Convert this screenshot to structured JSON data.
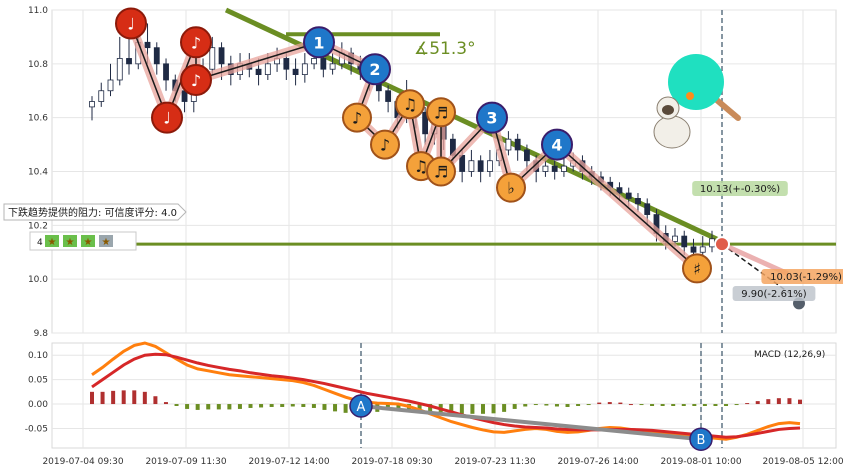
{
  "chart_data": [
    {
      "type": "candlestick",
      "panel": "price",
      "ylim": [
        9.8,
        11.0
      ],
      "y_ticks": [
        "9.8",
        "10.0",
        "10.2",
        "10.4",
        "10.6",
        "10.8",
        "11.0"
      ],
      "colors": {
        "up": "#1f2a44",
        "down": "#1f2a44",
        "trend_line": "#6b8e23",
        "support_line": "#6b8e23",
        "zigzag": "#1a1a1a",
        "zigzag_band": "#e8a39b"
      },
      "candles": [
        {
          "i": 0,
          "o": 10.64,
          "c": 10.66,
          "h": 10.68,
          "l": 10.59
        },
        {
          "i": 1,
          "o": 10.66,
          "c": 10.7,
          "h": 10.73,
          "l": 10.64
        },
        {
          "i": 2,
          "o": 10.7,
          "c": 10.74,
          "h": 10.8,
          "l": 10.68
        },
        {
          "i": 3,
          "o": 10.74,
          "c": 10.82,
          "h": 10.9,
          "l": 10.72
        },
        {
          "i": 4,
          "o": 10.82,
          "c": 10.8,
          "h": 10.95,
          "l": 10.76
        },
        {
          "i": 5,
          "o": 10.8,
          "c": 10.88,
          "h": 10.98,
          "l": 10.78
        },
        {
          "i": 6,
          "o": 10.88,
          "c": 10.86,
          "h": 10.95,
          "l": 10.8
        },
        {
          "i": 7,
          "o": 10.86,
          "c": 10.8,
          "h": 10.88,
          "l": 10.76
        },
        {
          "i": 8,
          "o": 10.8,
          "c": 10.74,
          "h": 10.82,
          "l": 10.7
        },
        {
          "i": 9,
          "o": 10.74,
          "c": 10.7,
          "h": 10.76,
          "l": 10.66
        },
        {
          "i": 10,
          "o": 10.7,
          "c": 10.66,
          "h": 10.73,
          "l": 10.62
        },
        {
          "i": 11,
          "o": 10.66,
          "c": 10.72,
          "h": 10.75,
          "l": 10.62
        },
        {
          "i": 12,
          "o": 10.72,
          "c": 10.78,
          "h": 10.82,
          "l": 10.7
        },
        {
          "i": 13,
          "o": 10.78,
          "c": 10.86,
          "h": 10.9,
          "l": 10.76
        },
        {
          "i": 14,
          "o": 10.86,
          "c": 10.8,
          "h": 10.88,
          "l": 10.74
        },
        {
          "i": 15,
          "o": 10.8,
          "c": 10.76,
          "h": 10.83,
          "l": 10.72
        },
        {
          "i": 16,
          "o": 10.76,
          "c": 10.8,
          "h": 10.84,
          "l": 10.74
        },
        {
          "i": 17,
          "o": 10.8,
          "c": 10.78,
          "h": 10.84,
          "l": 10.75
        },
        {
          "i": 18,
          "o": 10.78,
          "c": 10.76,
          "h": 10.82,
          "l": 10.72
        },
        {
          "i": 19,
          "o": 10.76,
          "c": 10.8,
          "h": 10.84,
          "l": 10.74
        },
        {
          "i": 20,
          "o": 10.8,
          "c": 10.82,
          "h": 10.86,
          "l": 10.77
        },
        {
          "i": 21,
          "o": 10.82,
          "c": 10.78,
          "h": 10.84,
          "l": 10.74
        },
        {
          "i": 22,
          "o": 10.78,
          "c": 10.76,
          "h": 10.82,
          "l": 10.72
        },
        {
          "i": 23,
          "o": 10.76,
          "c": 10.8,
          "h": 10.84,
          "l": 10.73
        },
        {
          "i": 24,
          "o": 10.8,
          "c": 10.82,
          "h": 10.86,
          "l": 10.78
        },
        {
          "i": 25,
          "o": 10.82,
          "c": 10.78,
          "h": 10.84,
          "l": 10.75
        },
        {
          "i": 26,
          "o": 10.78,
          "c": 10.8,
          "h": 10.84,
          "l": 10.76
        },
        {
          "i": 27,
          "o": 10.8,
          "c": 10.84,
          "h": 10.88,
          "l": 10.78
        },
        {
          "i": 28,
          "o": 10.84,
          "c": 10.8,
          "h": 10.86,
          "l": 10.76
        },
        {
          "i": 29,
          "o": 10.8,
          "c": 10.78,
          "h": 10.83,
          "l": 10.74
        },
        {
          "i": 30,
          "o": 10.78,
          "c": 10.74,
          "h": 10.8,
          "l": 10.7
        },
        {
          "i": 31,
          "o": 10.74,
          "c": 10.7,
          "h": 10.76,
          "l": 10.66
        },
        {
          "i": 32,
          "o": 10.7,
          "c": 10.66,
          "h": 10.72,
          "l": 10.62
        },
        {
          "i": 33,
          "o": 10.66,
          "c": 10.6,
          "h": 10.68,
          "l": 10.56
        },
        {
          "i": 34,
          "o": 10.6,
          "c": 10.68,
          "h": 10.74,
          "l": 10.58
        },
        {
          "i": 35,
          "o": 10.68,
          "c": 10.62,
          "h": 10.7,
          "l": 10.56
        },
        {
          "i": 36,
          "o": 10.62,
          "c": 10.54,
          "h": 10.64,
          "l": 10.5
        },
        {
          "i": 37,
          "o": 10.54,
          "c": 10.58,
          "h": 10.62,
          "l": 10.5
        },
        {
          "i": 38,
          "o": 10.58,
          "c": 10.52,
          "h": 10.6,
          "l": 10.48
        },
        {
          "i": 39,
          "o": 10.52,
          "c": 10.46,
          "h": 10.54,
          "l": 10.42
        },
        {
          "i": 40,
          "o": 10.46,
          "c": 10.4,
          "h": 10.48,
          "l": 10.36
        },
        {
          "i": 41,
          "o": 10.4,
          "c": 10.44,
          "h": 10.48,
          "l": 10.38
        },
        {
          "i": 42,
          "o": 10.44,
          "c": 10.4,
          "h": 10.46,
          "l": 10.36
        },
        {
          "i": 43,
          "o": 10.4,
          "c": 10.44,
          "h": 10.48,
          "l": 10.38
        },
        {
          "i": 44,
          "o": 10.44,
          "c": 10.48,
          "h": 10.52,
          "l": 10.42
        },
        {
          "i": 45,
          "o": 10.48,
          "c": 10.52,
          "h": 10.55,
          "l": 10.46
        },
        {
          "i": 46,
          "o": 10.52,
          "c": 10.48,
          "h": 10.54,
          "l": 10.44
        },
        {
          "i": 47,
          "o": 10.48,
          "c": 10.44,
          "h": 10.5,
          "l": 10.4
        },
        {
          "i": 48,
          "o": 10.44,
          "c": 10.4,
          "h": 10.46,
          "l": 10.36
        },
        {
          "i": 49,
          "o": 10.4,
          "c": 10.42,
          "h": 10.45,
          "l": 10.38
        },
        {
          "i": 50,
          "o": 10.42,
          "c": 10.4,
          "h": 10.44,
          "l": 10.37
        },
        {
          "i": 51,
          "o": 10.4,
          "c": 10.42,
          "h": 10.45,
          "l": 10.38
        },
        {
          "i": 52,
          "o": 10.42,
          "c": 10.44,
          "h": 10.47,
          "l": 10.4
        },
        {
          "i": 53,
          "o": 10.44,
          "c": 10.4,
          "h": 10.46,
          "l": 10.37
        },
        {
          "i": 54,
          "o": 10.4,
          "c": 10.38,
          "h": 10.42,
          "l": 10.35
        },
        {
          "i": 55,
          "o": 10.38,
          "c": 10.36,
          "h": 10.4,
          "l": 10.33
        },
        {
          "i": 56,
          "o": 10.36,
          "c": 10.34,
          "h": 10.38,
          "l": 10.31
        },
        {
          "i": 57,
          "o": 10.34,
          "c": 10.32,
          "h": 10.36,
          "l": 10.29
        },
        {
          "i": 58,
          "o": 10.32,
          "c": 10.3,
          "h": 10.34,
          "l": 10.27
        },
        {
          "i": 59,
          "o": 10.3,
          "c": 10.28,
          "h": 10.32,
          "l": 10.25
        },
        {
          "i": 60,
          "o": 10.28,
          "c": 10.24,
          "h": 10.3,
          "l": 10.2
        },
        {
          "i": 61,
          "o": 10.24,
          "c": 10.17,
          "h": 10.26,
          "l": 10.14
        },
        {
          "i": 62,
          "o": 10.17,
          "c": 10.14,
          "h": 10.2,
          "l": 10.11
        },
        {
          "i": 63,
          "o": 10.14,
          "c": 10.16,
          "h": 10.19,
          "l": 10.12
        },
        {
          "i": 64,
          "o": 10.16,
          "c": 10.12,
          "h": 10.18,
          "l": 10.09
        },
        {
          "i": 65,
          "o": 10.12,
          "c": 10.1,
          "h": 10.15,
          "l": 10.07
        },
        {
          "i": 66,
          "o": 10.1,
          "c": 10.12,
          "h": 10.16,
          "l": 10.08
        },
        {
          "i": 67,
          "o": 10.12,
          "c": 10.15,
          "h": 10.18,
          "l": 10.1
        }
      ],
      "x_tick_labels": [
        "2019-07-04 09:30",
        "2019-07-09 11:30",
        "2019-07-12 14:00",
        "2019-07-18 09:30",
        "2019-07-23 11:30",
        "2019-07-26 14:00",
        "2019-08-01 10:00",
        "2019-08-05 12:00"
      ],
      "zigzag_points": [
        {
          "label": "♩",
          "kind": "note",
          "value": 10.95
        },
        {
          "label": "♩",
          "kind": "note",
          "value": 10.6
        },
        {
          "label": "♪",
          "kind": "note",
          "value": 10.88
        },
        {
          "label": "♪",
          "kind": "note",
          "value": 10.74
        },
        {
          "label": "1",
          "kind": "number",
          "value": 10.88
        },
        {
          "label": "2",
          "kind": "number",
          "value": 10.78
        },
        {
          "label": "♪",
          "kind": "note",
          "value": 10.6
        },
        {
          "label": "♪",
          "kind": "note",
          "value": 10.5
        },
        {
          "label": "♫",
          "kind": "note",
          "value": 10.65
        },
        {
          "label": "♫",
          "kind": "note",
          "value": 10.42
        },
        {
          "label": "♬",
          "kind": "note",
          "value": 10.62
        },
        {
          "label": "♬",
          "kind": "note",
          "value": 10.4
        },
        {
          "label": "3",
          "kind": "number",
          "value": 10.6
        },
        {
          "label": "♭",
          "kind": "note",
          "value": 10.34
        },
        {
          "label": "4",
          "kind": "number",
          "value": 10.5
        },
        {
          "label": "♯",
          "kind": "note",
          "value": 10.04
        }
      ],
      "angle_label": "∡51.3°",
      "resistance_label": "下跌趋势提供的阻力: 可信度评分: 4.0",
      "rating_number": "4",
      "forecasts": [
        {
          "label": "10.13(+-0.30%)",
          "value": 10.13,
          "color": "#b8d9a0"
        },
        {
          "label": "10.03(-1.29%)",
          "value": 10.03,
          "color": "#f4a460"
        },
        {
          "label": "9.90(-2.61%)",
          "value": 9.9,
          "color": "#bfc5cc"
        }
      ],
      "support_level": 10.13,
      "trend_line": {
        "start": 11.0,
        "end": 10.14
      }
    },
    {
      "type": "macd",
      "panel": "indicator",
      "label": "MACD (12,26,9)",
      "ylim": [
        -0.09,
        0.125
      ],
      "y_ticks": [
        "0.10",
        "0.05",
        "0.00",
        "-0.05"
      ],
      "macd": [
        0.06,
        0.075,
        0.092,
        0.108,
        0.12,
        0.125,
        0.118,
        0.105,
        0.092,
        0.08,
        0.072,
        0.068,
        0.064,
        0.06,
        0.058,
        0.056,
        0.054,
        0.052,
        0.05,
        0.048,
        0.044,
        0.038,
        0.03,
        0.022,
        0.014,
        0.008,
        0.004,
        0.002,
        0.001,
        0.0,
        -0.005,
        -0.012,
        -0.02,
        -0.028,
        -0.036,
        -0.042,
        -0.048,
        -0.053,
        -0.057,
        -0.058,
        -0.055,
        -0.052,
        -0.05,
        -0.052,
        -0.056,
        -0.058,
        -0.057,
        -0.054,
        -0.05,
        -0.048,
        -0.049,
        -0.052,
        -0.055,
        -0.058,
        -0.06,
        -0.062,
        -0.064,
        -0.066,
        -0.068,
        -0.07,
        -0.072,
        -0.068,
        -0.062,
        -0.054,
        -0.046,
        -0.04,
        -0.038,
        -0.04
      ],
      "signal": [
        0.035,
        0.05,
        0.065,
        0.08,
        0.092,
        0.1,
        0.102,
        0.101,
        0.096,
        0.09,
        0.084,
        0.079,
        0.075,
        0.071,
        0.068,
        0.064,
        0.061,
        0.058,
        0.056,
        0.053,
        0.05,
        0.046,
        0.042,
        0.037,
        0.032,
        0.027,
        0.022,
        0.018,
        0.014,
        0.01,
        0.006,
        0.001,
        -0.004,
        -0.01,
        -0.016,
        -0.022,
        -0.028,
        -0.033,
        -0.038,
        -0.042,
        -0.045,
        -0.047,
        -0.048,
        -0.049,
        -0.051,
        -0.052,
        -0.053,
        -0.053,
        -0.053,
        -0.052,
        -0.052,
        -0.052,
        -0.053,
        -0.054,
        -0.056,
        -0.058,
        -0.06,
        -0.062,
        -0.064,
        -0.066,
        -0.068,
        -0.067,
        -0.064,
        -0.06,
        -0.056,
        -0.052,
        -0.05,
        -0.049
      ],
      "divergence_markers": [
        "A",
        "B"
      ],
      "colors": {
        "macd": "#ff7f0e",
        "signal": "#d62728",
        "hist_up": "#b03030",
        "hist_down": "#6b8e23",
        "divergence": "#8c8c8c"
      }
    }
  ]
}
